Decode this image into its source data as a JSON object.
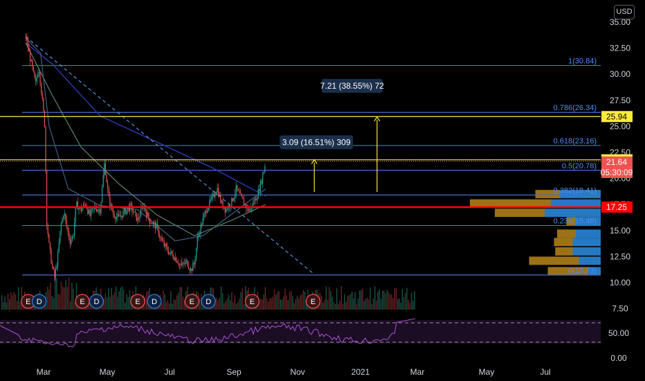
{
  "currency": "USD",
  "chart_data": {
    "type": "candlestick",
    "y_axis": {
      "ticks": [
        "35.00",
        "32.50",
        "30.00",
        "27.50",
        "25.00",
        "22.50",
        "20.00",
        "17.50",
        "15.00",
        "12.50",
        "10.00",
        "7.50"
      ],
      "ylim": [
        7.2,
        35.0
      ]
    },
    "x_axis": {
      "ticks": [
        "Mar",
        "May",
        "Jul",
        "Sep",
        "Nov",
        "2021",
        "Mar",
        "May",
        "Jul"
      ]
    },
    "price_path": [
      [
        "2020-02-01",
        33.6
      ],
      [
        "2020-02-10",
        31.0
      ],
      [
        "2020-02-17",
        29.0
      ],
      [
        "2020-02-22",
        30.8
      ],
      [
        "2020-02-27",
        28.0
      ],
      [
        "2020-03-03",
        25.0
      ],
      [
        "2020-03-06",
        16.0
      ],
      [
        "2020-03-10",
        13.5
      ],
      [
        "2020-03-15",
        11.5
      ],
      [
        "2020-03-19",
        10.5
      ],
      [
        "2020-03-24",
        12.5
      ],
      [
        "2020-03-29",
        15.5
      ],
      [
        "2020-04-03",
        16.8
      ],
      [
        "2020-04-08",
        15.2
      ],
      [
        "2020-04-13",
        14.0
      ],
      [
        "2020-04-18",
        14.5
      ],
      [
        "2020-04-23",
        17.5
      ],
      [
        "2020-05-01",
        17.0
      ],
      [
        "2020-05-08",
        17.6
      ],
      [
        "2020-05-15",
        16.4
      ],
      [
        "2020-05-22",
        17.2
      ],
      [
        "2020-06-01",
        17.0
      ],
      [
        "2020-06-08",
        21.5
      ],
      [
        "2020-06-15",
        18.0
      ],
      [
        "2020-06-22",
        16.6
      ],
      [
        "2020-07-01",
        16.2
      ],
      [
        "2020-07-10",
        16.8
      ],
      [
        "2020-07-20",
        17.3
      ],
      [
        "2020-08-01",
        16.0
      ],
      [
        "2020-08-10",
        17.4
      ],
      [
        "2020-08-20",
        16.0
      ],
      [
        "2020-09-01",
        15.3
      ],
      [
        "2020-09-10",
        13.8
      ],
      [
        "2020-09-20",
        13.0
      ],
      [
        "2020-10-01",
        12.4
      ],
      [
        "2020-10-10",
        11.6
      ],
      [
        "2020-10-20",
        12.0
      ],
      [
        "2020-10-26",
        11.2
      ],
      [
        "2020-11-01",
        11.8
      ],
      [
        "2020-11-06",
        14.2
      ],
      [
        "2020-11-12",
        15.5
      ],
      [
        "2020-11-20",
        17.0
      ],
      [
        "2020-12-01",
        18.2
      ],
      [
        "2020-12-08",
        19.1
      ],
      [
        "2020-12-15",
        17.6
      ],
      [
        "2020-12-22",
        17.0
      ],
      [
        "2021-01-01",
        17.8
      ],
      [
        "2021-01-08",
        19.0
      ],
      [
        "2021-01-15",
        18.2
      ],
      [
        "2021-01-22",
        17.5
      ],
      [
        "2021-01-29",
        16.9
      ],
      [
        "2021-02-05",
        17.6
      ],
      [
        "2021-02-12",
        18.5
      ],
      [
        "2021-02-19",
        20.0
      ],
      [
        "2021-02-25",
        21.6
      ]
    ],
    "moving_averages": [
      {
        "color": "#2d3fb3",
        "path": [
          [
            "2020-02-01",
            33.0
          ],
          [
            "2020-03-15",
            31.0
          ],
          [
            "2020-06-01",
            26.0
          ],
          [
            "2020-09-01",
            23.5
          ],
          [
            "2020-12-01",
            21.0
          ],
          [
            "2021-02-25",
            18.3
          ]
        ]
      },
      {
        "color": "#5a7a66",
        "path": [
          [
            "2020-02-01",
            33.0
          ],
          [
            "2020-03-15",
            28.0
          ],
          [
            "2020-05-01",
            23.0
          ],
          [
            "2020-07-01",
            19.5
          ],
          [
            "2020-09-01",
            16.5
          ],
          [
            "2020-11-01",
            14.5
          ],
          [
            "2021-01-01",
            16.0
          ],
          [
            "2021-02-25",
            17.5
          ]
        ]
      },
      {
        "color": "#3e5a7a",
        "path": [
          [
            "2020-02-01",
            33.5
          ],
          [
            "2020-02-25",
            32.0
          ],
          [
            "2020-03-10",
            25.0
          ],
          [
            "2020-04-10",
            19.0
          ],
          [
            "2020-06-01",
            17.4
          ],
          [
            "2020-08-01",
            17.0
          ],
          [
            "2020-10-01",
            14.0
          ],
          [
            "2020-11-15",
            14.5
          ],
          [
            "2021-01-15",
            17.2
          ],
          [
            "2021-02-25",
            19.0
          ]
        ]
      }
    ],
    "fib_levels": [
      {
        "label": "1(30.84)",
        "price": 30.84
      },
      {
        "label": "0.786(26.34)",
        "price": 26.34
      },
      {
        "label": "0.618(23.16)",
        "price": 23.16
      },
      {
        "label": "0.5(20.78)",
        "price": 20.78
      },
      {
        "label": "0.382(18.41)",
        "price": 18.41
      },
      {
        "label": "0.236(15.48)",
        "price": 15.48
      },
      {
        "label": "0(10.73)",
        "price": 10.73
      }
    ],
    "horizontal_lines": [
      {
        "price": 25.94,
        "color": "#ffeb3b",
        "label": "25.94"
      },
      {
        "price": 21.79,
        "color": "#ffeb3b",
        "label": "21.79"
      },
      {
        "price": 17.25,
        "color": "#ff0000",
        "label": "17.25"
      }
    ],
    "last_price": {
      "value": "21.64",
      "countdown": "05:30:09",
      "price": 21.64
    },
    "trendline": {
      "from": [
        "2020-02-01",
        33.6
      ],
      "to": [
        "2021-05-15",
        10.8
      ],
      "color": "#5b8fd6"
    },
    "measurements": [
      {
        "label": "3.09 (16.51%) 309",
        "at_date": "2021-05-15",
        "from": 18.7,
        "to": 21.8
      },
      {
        "label": "7.21 (38.55%) 72",
        "at_date": "2021-08-25",
        "from": 18.7,
        "to": 25.9
      }
    ],
    "volume_profile": [
      {
        "price": 18.5,
        "up": 6.5,
        "down": 4.0
      },
      {
        "price": 17.6,
        "up": 8.0,
        "down": 13.0
      },
      {
        "price": 16.7,
        "up": 9.0,
        "down": 8.0
      },
      {
        "price": 15.9,
        "up": 4.0,
        "down": 1.5
      },
      {
        "price": 14.7,
        "up": 4.0,
        "down": 3.0
      },
      {
        "price": 13.9,
        "up": 4.5,
        "down": 3.0
      },
      {
        "price": 13.0,
        "up": 4.5,
        "down": 2.8
      },
      {
        "price": 12.1,
        "up": 3.5,
        "down": 8.0
      },
      {
        "price": 11.1,
        "up": 2.0,
        "down": 6.5
      }
    ],
    "events": [
      {
        "type": "E",
        "date": "2020-02-05"
      },
      {
        "type": "D",
        "date": "2020-02-23"
      },
      {
        "type": "E",
        "date": "2020-05-03"
      },
      {
        "type": "D",
        "date": "2020-05-26"
      },
      {
        "type": "E",
        "date": "2020-08-01"
      },
      {
        "type": "D",
        "date": "2020-08-28"
      },
      {
        "type": "E",
        "date": "2020-10-28"
      },
      {
        "type": "D",
        "date": "2020-11-24"
      },
      {
        "type": "E",
        "date": "2021-02-03"
      },
      {
        "type": "E",
        "date": "2021-05-13"
      }
    ],
    "rsi": {
      "ticks": [
        "50.00",
        "0.00"
      ]
    }
  }
}
